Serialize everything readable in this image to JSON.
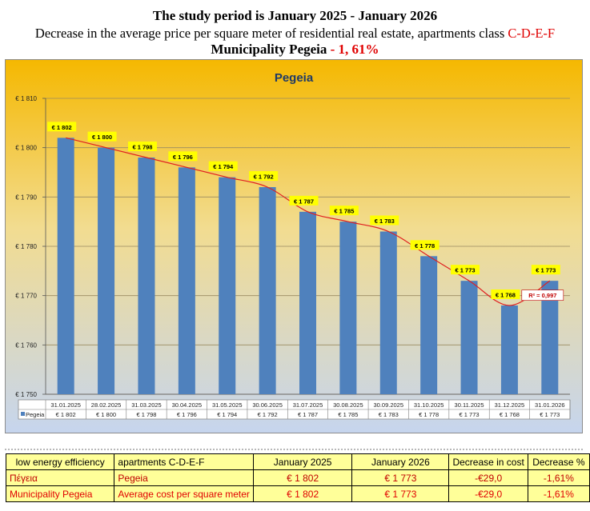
{
  "header": {
    "line1": "The study period is January 2025 - January 2026",
    "line2_prefix": "Decrease in the average price per square meter of residential real estate, apartments class ",
    "line2_class": "C-D-E-F",
    "line3_prefix": "Municipality Pegeia",
    "line3_value": " - 1, 61%"
  },
  "chart_data": {
    "type": "bar",
    "title": "Pegeia",
    "categories": [
      "31.01.2025",
      "28.02.2025",
      "31.03.2025",
      "30.04.2025",
      "31.05.2025",
      "30.06.2025",
      "31.07.2025",
      "30.08.2025",
      "30.09.2025",
      "31.10.2025",
      "30.11.2025",
      "31.12.2025",
      "31.01.2026"
    ],
    "series": [
      {
        "name": "Pegeia",
        "values": [
          1802,
          1800,
          1798,
          1796,
          1794,
          1792,
          1787,
          1785,
          1783,
          1778,
          1773,
          1768,
          1773
        ]
      }
    ],
    "data_labels": [
      "€ 1 802",
      "€ 1 800",
      "€ 1 798",
      "€ 1 796",
      "€ 1 794",
      "€ 1 792",
      "€ 1 787",
      "€ 1 785",
      "€ 1 783",
      "€ 1 778",
      "€ 1 773",
      "€ 1 768",
      "€ 1 773"
    ],
    "ylim": [
      1750,
      1810
    ],
    "yticks": [
      1750,
      1760,
      1770,
      1780,
      1790,
      1800,
      1810
    ],
    "ytick_labels": [
      "€ 1 750",
      "€ 1 760",
      "€ 1 770",
      "€ 1 780",
      "€ 1 790",
      "€ 1 800",
      "€ 1 810"
    ],
    "trendline": "polynomial",
    "r_squared_label": "R² = 0,997",
    "data_table": true,
    "grid": true,
    "colors": {
      "bar": "#4f81bd",
      "trend": "#e02020",
      "label_bg": "#ffff00",
      "bg_top": "#f5b800",
      "bg_bottom": "#c6d5ee"
    }
  },
  "summary_table": {
    "headers": [
      "low energy efficiency",
      "apartments C-D-E-F",
      "January 2025",
      "January 2026",
      "Decrease in cost",
      "Decrease %"
    ],
    "rows": [
      [
        "Πέγεια",
        "Pegeia",
        "€ 1 802",
        "€ 1 773",
        "-€29,0",
        "-1,61%"
      ],
      [
        "Municipality Pegeia",
        "Average cost per square meter",
        "€ 1 802",
        "€ 1 773",
        "-€29,0",
        "-1,61%"
      ]
    ]
  }
}
